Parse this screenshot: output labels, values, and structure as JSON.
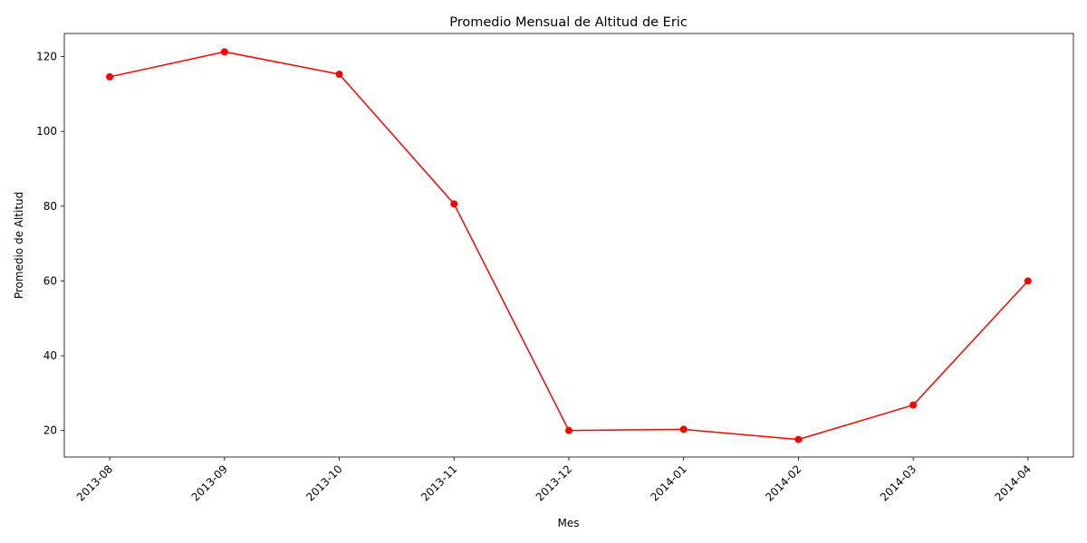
{
  "chart_data": {
    "type": "line",
    "title": "Promedio Mensual de Altitud de Eric",
    "xlabel": "Mes",
    "ylabel": "Promedio de Altitud",
    "categories": [
      "2013-08",
      "2013-09",
      "2013-10",
      "2013-11",
      "2013-12",
      "2014-01",
      "2014-02",
      "2014-03",
      "2014-04"
    ],
    "series": [
      {
        "values": [
          114.6,
          121.3,
          115.3,
          80.6,
          20.0,
          20.3,
          17.6,
          26.8,
          60.0
        ],
        "color": "#ff0000"
      }
    ],
    "ylim": [
      12.9,
      126.2
    ],
    "yticks": [
      20,
      40,
      60,
      80,
      100,
      120
    ],
    "grid": false,
    "legend": "none",
    "marker": "circle"
  }
}
